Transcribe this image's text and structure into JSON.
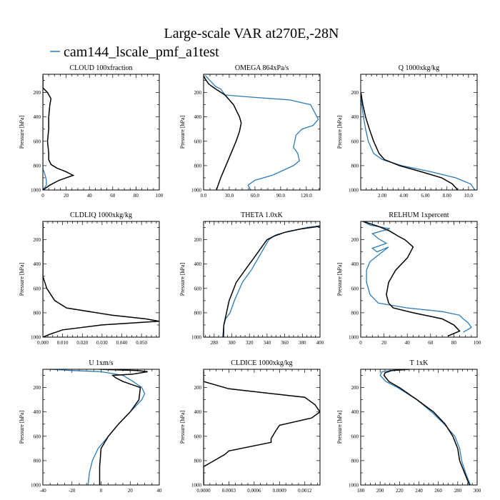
{
  "figure": {
    "title": "Large-scale VAR at270E,-28N",
    "legend_label": "cam144_lscale_pmf_a1test",
    "legend_color": "#2b7bb9",
    "control_color": "#000000"
  },
  "chart_data": [
    {
      "type": "line",
      "title": "CLOUD  100xfraction",
      "ylabel": "Pressure [hPa]",
      "xlim": [
        0,
        100
      ],
      "ylim": [
        1000,
        50
      ],
      "y_inverted": true,
      "xticks": [
        0,
        20,
        40,
        60,
        80,
        100
      ],
      "xtick_labels": [
        "0",
        "20",
        "40",
        "60",
        "80",
        "100"
      ],
      "yticks": [
        200,
        400,
        600,
        800,
        1000
      ],
      "series": [
        {
          "name": "cam144_lscale_pmf_a1test",
          "color": "#2b7bb9",
          "x": [
            0,
            0,
            0,
            0,
            0,
            0,
            0,
            0,
            0,
            0,
            0,
            0,
            0,
            1,
            2,
            3,
            3,
            0
          ],
          "y": [
            60,
            100,
            150,
            200,
            250,
            300,
            400,
            500,
            600,
            700,
            750,
            800,
            830,
            850,
            880,
            920,
            960,
            1000
          ]
        },
        {
          "name": "",
          "color": "#000000",
          "x": [
            0,
            0,
            4,
            7,
            6,
            5,
            5,
            4,
            5,
            5,
            7,
            12,
            20,
            26,
            14,
            6,
            0
          ],
          "y": [
            60,
            160,
            200,
            250,
            300,
            400,
            500,
            600,
            700,
            750,
            790,
            820,
            850,
            880,
            920,
            960,
            1000
          ]
        }
      ]
    },
    {
      "type": "line",
      "title": "OMEGA  864xPa/s",
      "ylabel": "Pressure [hPa]",
      "xlim": [
        0,
        136
      ],
      "ylim": [
        1000,
        50
      ],
      "y_inverted": true,
      "xticks": [
        0,
        30,
        60,
        90,
        120
      ],
      "xtick_labels": [
        "0.0",
        "30.0",
        "60.0",
        "90.0",
        "120.0"
      ],
      "yticks": [
        200,
        400,
        600,
        800,
        1000
      ],
      "series": [
        {
          "name": "cam144_lscale_pmf_a1test",
          "color": "#2b7bb9",
          "x": [
            2,
            6,
            10,
            14,
            20,
            25,
            60,
            100,
            125,
            134,
            128,
            115,
            108,
            105,
            110,
            112,
            105,
            80,
            60,
            52,
            55
          ],
          "y": [
            60,
            90,
            120,
            150,
            170,
            220,
            240,
            260,
            300,
            420,
            470,
            500,
            550,
            650,
            700,
            760,
            800,
            880,
            920,
            960,
            1000
          ]
        },
        {
          "name": "",
          "color": "#000000",
          "x": [
            0,
            2,
            6,
            14,
            25,
            35,
            42,
            44,
            42,
            38,
            32,
            26,
            20,
            15
          ],
          "y": [
            60,
            90,
            130,
            170,
            220,
            300,
            400,
            450,
            520,
            600,
            700,
            800,
            900,
            1000
          ]
        }
      ]
    },
    {
      "type": "line",
      "title": "Q  1000xkg/kg",
      "ylabel": "Pressure [hPa]",
      "xlim": [
        0,
        10.8
      ],
      "ylim": [
        1000,
        50
      ],
      "y_inverted": true,
      "xticks": [
        2,
        4,
        6,
        8,
        10
      ],
      "xtick_labels": [
        "2.00",
        "4.00",
        "6.00",
        "8.00",
        "10.0"
      ],
      "yticks": [
        200,
        400,
        600,
        800,
        1000
      ],
      "series": [
        {
          "name": "cam144_lscale_pmf_a1test",
          "color": "#2b7bb9",
          "x": [
            0.02,
            0.1,
            0.25,
            0.45,
            0.7,
            1.2,
            2.0,
            3.8,
            6.5,
            8.8,
            10.2,
            10.6
          ],
          "y": [
            200,
            300,
            400,
            500,
            600,
            700,
            750,
            800,
            850,
            900,
            950,
            1000
          ]
        },
        {
          "name": "",
          "color": "#000000",
          "x": [
            0.02,
            0.2,
            0.45,
            0.8,
            1.2,
            1.7,
            2.2,
            3.6,
            5.6,
            7.5,
            8.5,
            9.0
          ],
          "y": [
            200,
            300,
            400,
            500,
            600,
            700,
            750,
            800,
            850,
            900,
            950,
            1000
          ]
        }
      ]
    },
    {
      "type": "line",
      "title": "CLDLIQ  1000xkg/kg",
      "ylabel": "Pressure [hPa]",
      "xlim": [
        0,
        0.059
      ],
      "ylim": [
        1000,
        50
      ],
      "y_inverted": true,
      "xticks": [
        0,
        0.01,
        0.02,
        0.03,
        0.04,
        0.05
      ],
      "xtick_labels": [
        "0.000",
        "0.010",
        "0.020",
        "0.030",
        "0.040",
        "0.050"
      ],
      "yticks": [
        200,
        400,
        600,
        800,
        1000
      ],
      "series": [
        {
          "name": "cam144_lscale_pmf_a1test",
          "color": "#2b7bb9",
          "x": [
            0,
            0,
            0,
            0,
            0,
            0
          ],
          "y": [
            60,
            300,
            500,
            700,
            900,
            1000
          ]
        },
        {
          "name": "",
          "color": "#000000",
          "x": [
            0,
            0,
            0.002,
            0.006,
            0.012,
            0.035,
            0.052,
            0.059,
            0.03,
            0.01,
            0.003,
            0
          ],
          "y": [
            60,
            500,
            600,
            700,
            760,
            820,
            850,
            870,
            900,
            940,
            980,
            1000
          ]
        }
      ]
    },
    {
      "type": "line",
      "title": "THETA  1.0xK",
      "ylabel": "Pressure [hPa]",
      "xlim": [
        268,
        400
      ],
      "ylim": [
        1000,
        50
      ],
      "y_inverted": true,
      "xticks": [
        280,
        300,
        320,
        340,
        360,
        380,
        400
      ],
      "xtick_labels": [
        "280",
        "300",
        "320",
        "340",
        "360",
        "380",
        "400"
      ],
      "yticks": [
        200,
        400,
        600,
        800,
        1000
      ],
      "series": [
        {
          "name": "cam144_lscale_pmf_a1test",
          "color": "#2b7bb9",
          "x": [
            400,
            385,
            365,
            350,
            342,
            338,
            330,
            322,
            312,
            303,
            298,
            293,
            291,
            291
          ],
          "y": [
            85,
            100,
            130,
            160,
            200,
            250,
            350,
            450,
            550,
            700,
            800,
            850,
            900,
            1000
          ]
        },
        {
          "name": "",
          "color": "#000000",
          "x": [
            400,
            380,
            360,
            348,
            340,
            335,
            325,
            315,
            305,
            297,
            294,
            291,
            290
          ],
          "y": [
            90,
            110,
            140,
            170,
            200,
            250,
            350,
            450,
            550,
            700,
            800,
            900,
            1000
          ]
        }
      ]
    },
    {
      "type": "line",
      "title": "RELHUM  1xpercent",
      "ylabel": "Pressure [hPa]",
      "xlim": [
        0,
        100
      ],
      "ylim": [
        1000,
        50
      ],
      "y_inverted": true,
      "xticks": [
        0,
        20,
        40,
        60,
        80,
        100
      ],
      "xtick_labels": [
        "0",
        "20",
        "40",
        "60",
        "80",
        "100"
      ],
      "yticks": [
        200,
        400,
        600,
        800,
        1000
      ],
      "series": [
        {
          "name": "cam144_lscale_pmf_a1test",
          "color": "#2b7bb9",
          "x": [
            2,
            8,
            25,
            10,
            15,
            22,
            10,
            14,
            24,
            8,
            5,
            5,
            8,
            15,
            40,
            70,
            85,
            88,
            92,
            95,
            88
          ],
          "y": [
            50,
            80,
            110,
            150,
            190,
            230,
            270,
            300,
            260,
            380,
            450,
            550,
            650,
            720,
            760,
            790,
            820,
            850,
            880,
            920,
            960
          ]
        },
        {
          "name": "",
          "color": "#000000",
          "x": [
            2,
            15,
            25,
            32,
            38,
            45,
            40,
            30,
            24,
            22,
            24,
            28,
            45,
            70,
            80,
            85,
            75
          ],
          "y": [
            50,
            90,
            130,
            170,
            200,
            260,
            350,
            450,
            550,
            650,
            720,
            760,
            800,
            850,
            900,
            950,
            990
          ]
        }
      ]
    },
    {
      "type": "line",
      "title": "U  1xm/s",
      "ylabel": "Pressure [hPa]",
      "xlim": [
        -40,
        40
      ],
      "ylim": [
        1000,
        50
      ],
      "y_inverted": true,
      "xticks": [
        -40,
        -20,
        0,
        20,
        40
      ],
      "xtick_labels": [
        "-40",
        "-20",
        "0",
        "20",
        "40"
      ],
      "yticks": [
        200,
        400,
        600,
        800,
        1000
      ],
      "series": [
        {
          "name": "cam144_lscale_pmf_a1test",
          "color": "#2b7bb9",
          "x": [
            -35,
            -20,
            0,
            15,
            22,
            28,
            30,
            28,
            20,
            12,
            5,
            -2,
            -6,
            -8,
            -9
          ],
          "y": [
            50,
            60,
            70,
            100,
            150,
            200,
            250,
            300,
            400,
            500,
            600,
            700,
            800,
            900,
            1000
          ]
        },
        {
          "name": "",
          "color": "#000000",
          "x": [
            -1,
            25,
            32,
            22,
            8,
            10,
            15,
            27,
            26,
            20,
            12,
            5,
            0,
            -1,
            -1
          ],
          "y": [
            50,
            60,
            70,
            90,
            100,
            120,
            150,
            200,
            300,
            400,
            500,
            600,
            700,
            850,
            1000
          ]
        }
      ]
    },
    {
      "type": "line",
      "title": "CLDICE  1000xkg/kg",
      "ylabel": "Pressure [hPa]",
      "xlim": [
        0,
        0.00138
      ],
      "ylim": [
        1000,
        50
      ],
      "y_inverted": true,
      "xticks": [
        0,
        0.0003,
        0.0006,
        0.0009,
        0.0012
      ],
      "xtick_labels": [
        "0.0000",
        "0.0003",
        "0.0006",
        "0.0009",
        "0.0012"
      ],
      "yticks": [
        200,
        400,
        600,
        800,
        1000
      ],
      "series": [
        {
          "name": "cam144_lscale_pmf_a1test",
          "color": "#2b7bb9",
          "x": [
            0,
            0,
            0,
            0
          ],
          "y": [
            60,
            300,
            700,
            1000
          ]
        },
        {
          "name": "",
          "color": "#000000",
          "x": [
            0,
            0,
            0.0003,
            0.0012,
            0.00132,
            0.00138,
            0.00128,
            0.0009,
            0.00086,
            0.0008,
            0.0008,
            0.0003,
            0.00025,
            0,
            0
          ],
          "y": [
            60,
            150,
            210,
            280,
            340,
            400,
            450,
            510,
            550,
            620,
            650,
            720,
            750,
            850,
            1000
          ]
        }
      ]
    },
    {
      "type": "line",
      "title": "T  1xK",
      "ylabel": "Pressure [hPa]",
      "xlim": [
        180,
        300
      ],
      "ylim": [
        1000,
        50
      ],
      "y_inverted": true,
      "xticks": [
        180,
        200,
        220,
        240,
        260,
        280,
        300
      ],
      "xtick_labels": [
        "180",
        "200",
        "220",
        "240",
        "260",
        "280",
        "300"
      ],
      "yticks": [
        200,
        400,
        600,
        800,
        1000
      ],
      "series": [
        {
          "name": "cam144_lscale_pmf_a1test",
          "color": "#2b7bb9",
          "x": [
            230,
            212,
            202,
            200,
            206,
            218,
            238,
            253,
            266,
            277,
            282,
            284,
            288,
            293
          ],
          "y": [
            50,
            60,
            70,
            100,
            150,
            200,
            300,
            400,
            500,
            600,
            700,
            800,
            900,
            1000
          ]
        },
        {
          "name": "",
          "color": "#000000",
          "x": [
            230,
            212,
            205,
            204,
            209,
            220,
            238,
            255,
            267,
            275,
            280,
            282,
            287,
            292
          ],
          "y": [
            50,
            60,
            80,
            100,
            150,
            200,
            300,
            400,
            500,
            600,
            700,
            800,
            900,
            1000
          ]
        }
      ]
    }
  ]
}
